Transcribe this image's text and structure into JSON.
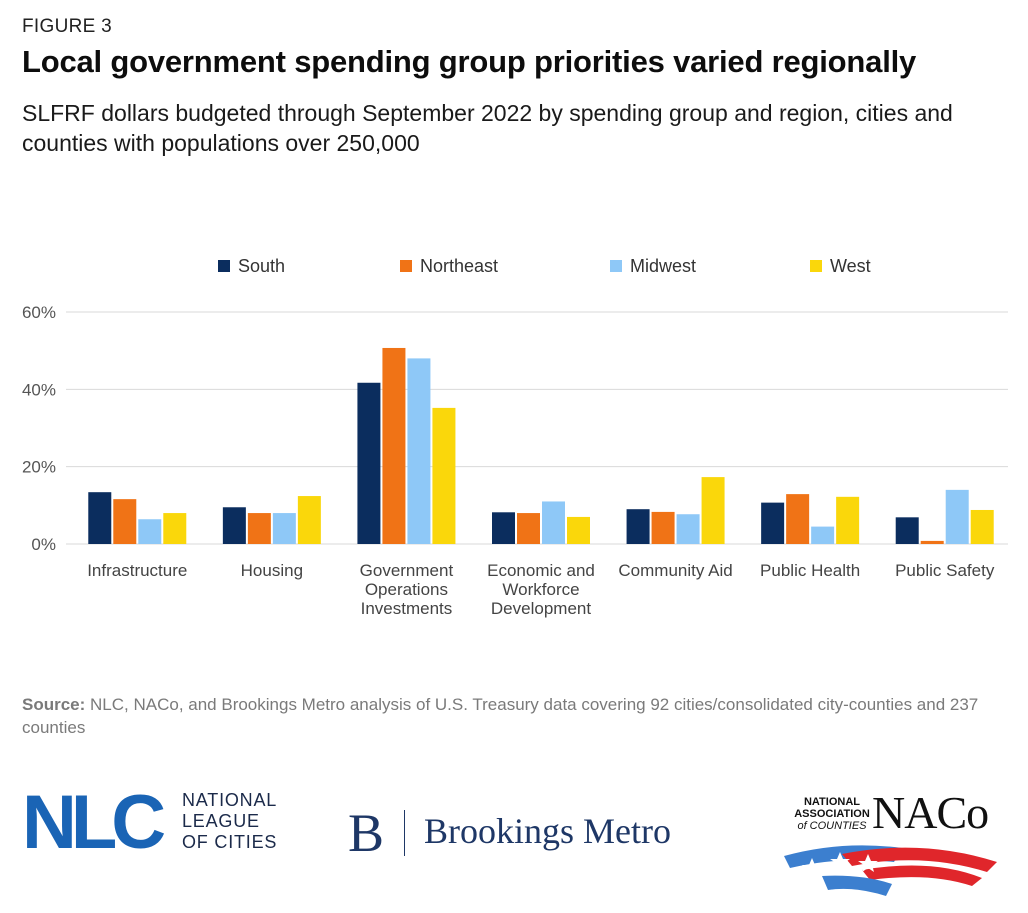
{
  "header": {
    "figure_label": "FIGURE 3",
    "title": "Local government spending group priorities varied regionally",
    "subtitle": "SLFRF dollars budgeted through September 2022 by spending group and region, cities and counties with populations over 250,000"
  },
  "chart_data": {
    "type": "bar",
    "categories": [
      [
        "Infrastructure"
      ],
      [
        "Housing"
      ],
      [
        "Government",
        "Operations",
        "Investments"
      ],
      [
        "Economic and",
        "Workforce",
        "Development"
      ],
      [
        "Community Aid"
      ],
      [
        "Public Health"
      ],
      [
        "Public Safety"
      ]
    ],
    "series": [
      {
        "name": "South",
        "color": "#0b2d5e",
        "values": [
          13.4,
          9.5,
          41.7,
          8.2,
          9.0,
          10.7,
          6.9
        ]
      },
      {
        "name": "Northeast",
        "color": "#f07316",
        "values": [
          11.6,
          8.0,
          50.7,
          8.0,
          8.3,
          12.9,
          0.8
        ]
      },
      {
        "name": "Midwest",
        "color": "#8ec8f7",
        "values": [
          6.4,
          8.0,
          48.0,
          11.0,
          7.7,
          4.5,
          14.0
        ]
      },
      {
        "name": "West",
        "color": "#fad70b",
        "values": [
          8.0,
          12.4,
          35.2,
          7.0,
          17.3,
          12.2,
          8.8
        ]
      }
    ],
    "yticks": [
      "0%",
      "20%",
      "40%",
      "60%"
    ],
    "ylim": [
      0,
      60
    ],
    "legend_position": "top",
    "grid": true
  },
  "footer": {
    "source_label": "Source:",
    "source_text": " NLC, NACo, and Brookings Metro analysis of U.S. Treasury data covering 92 cities/consolidated city-counties and 237 counties"
  },
  "logos": {
    "nlc": {
      "mark": "NLC",
      "line1": "NATIONAL",
      "line2": "LEAGUE",
      "line3": "OF CITIES"
    },
    "brookings": {
      "mark": "B",
      "name": "Brookings Metro"
    },
    "naco": {
      "line1": "NATIONAL",
      "line2": "ASSOCIATION",
      "line3": "of COUNTIES",
      "mark": "NACo"
    }
  }
}
